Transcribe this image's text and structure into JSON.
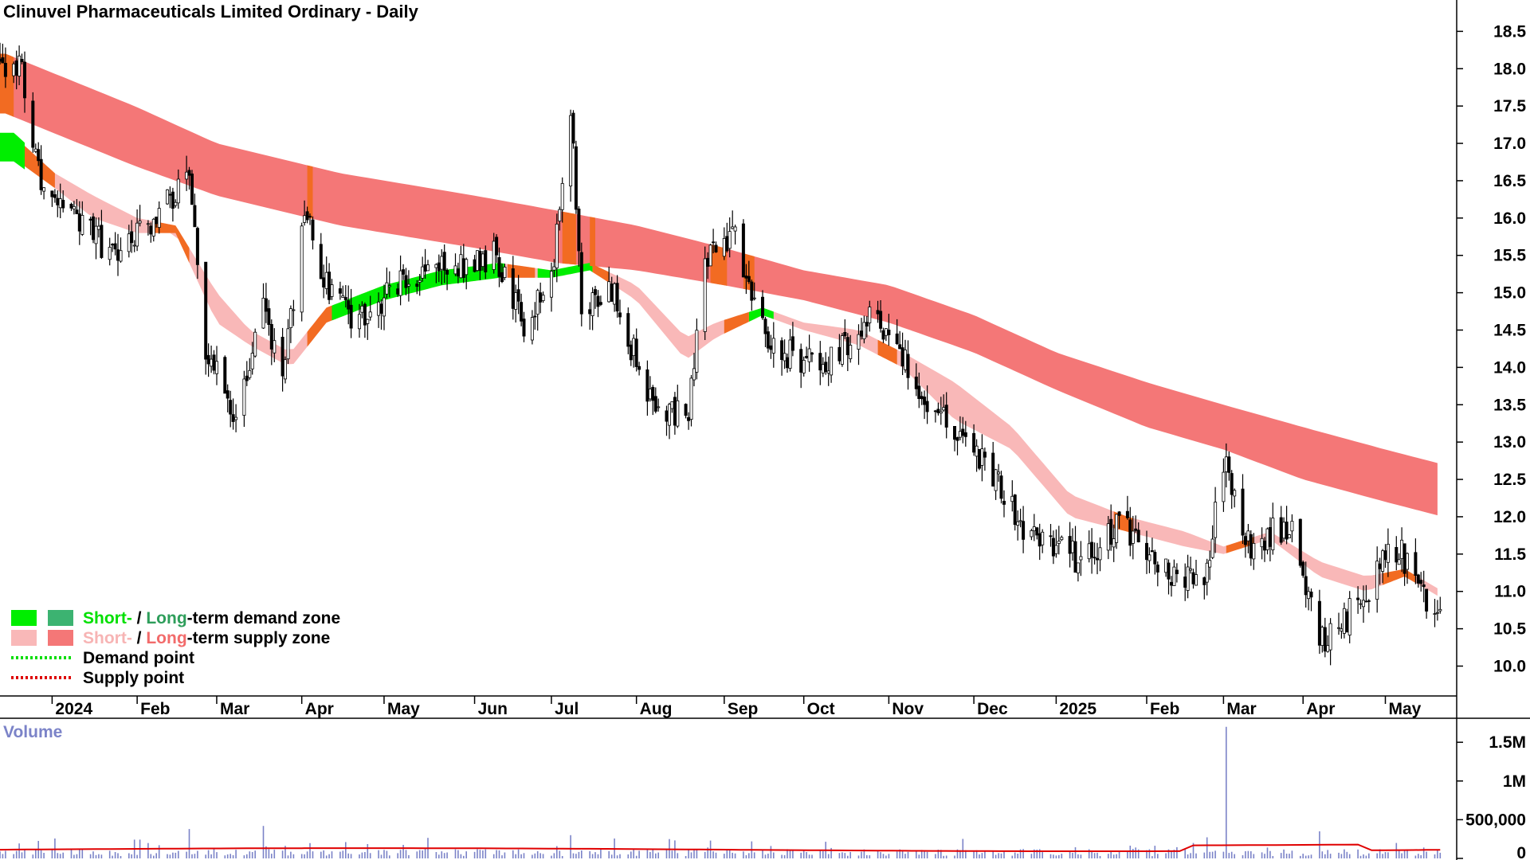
{
  "chart_data": {
    "type": "candlestick",
    "title": "Clinuvel Pharmaceuticals Limited Ordinary - Daily",
    "price_axis": {
      "ticks": [
        "10.0",
        "10.5",
        "11.0",
        "11.5",
        "12.0",
        "12.5",
        "13.0",
        "13.5",
        "14.0",
        "14.5",
        "15.0",
        "15.5",
        "16.0",
        "16.5",
        "17.0",
        "17.5",
        "18.0",
        "18.5"
      ],
      "ylim": [
        9.6,
        18.6
      ]
    },
    "time_axis": {
      "ticks": [
        "2024",
        "Feb",
        "Mar",
        "Apr",
        "May",
        "Jun",
        "Jul",
        "Aug",
        "Sep",
        "Oct",
        "Nov",
        "Dec",
        "2025",
        "Feb",
        "Mar",
        "Apr",
        "May"
      ]
    },
    "close_anchors": {
      "2023-12-20": 18.1,
      "2023-12-27": 16.6,
      "2024-01-10": 16.0,
      "2024-01-24": 15.5,
      "2024-02-05": 15.9,
      "2024-02-20": 16.5,
      "2024-02-26": 14.3,
      "2024-03-08": 13.2,
      "2024-03-18": 15.0,
      "2024-03-25": 13.7,
      "2024-04-02": 16.2,
      "2024-04-08": 15.2,
      "2024-04-22": 14.6,
      "2024-05-06": 15.1,
      "2024-06-10": 15.5,
      "2024-06-21": 14.6,
      "2024-07-01": 15.1,
      "2024-07-08": 17.5,
      "2024-07-12": 14.9,
      "2024-07-24": 15.0,
      "2024-08-05": 13.6,
      "2024-08-20": 13.3,
      "2024-08-26": 15.5,
      "2024-09-06": 15.7,
      "2024-09-20": 14.2,
      "2024-10-08": 14.1,
      "2024-10-28": 14.7,
      "2024-11-12": 13.7,
      "2024-12-02": 12.9,
      "2024-12-20": 11.9,
      "2025-01-10": 11.4,
      "2025-01-24": 11.9,
      "2025-02-11": 11.2,
      "2025-02-25": 11.3,
      "2025-03-04": 12.9,
      "2025-03-10": 11.6,
      "2025-03-28": 11.9,
      "2025-04-07": 10.3,
      "2025-04-18": 10.7,
      "2025-05-05": 11.6,
      "2025-05-20": 10.7
    },
    "long_term_supply_zone": {
      "dates": [
        "2023-12-15",
        "2024-01-31",
        "2024-03-01",
        "2024-04-15",
        "2024-06-03",
        "2024-07-03",
        "2024-08-01",
        "2024-09-02",
        "2024-10-01",
        "2024-11-01",
        "2024-12-02",
        "2025-01-01",
        "2025-02-03",
        "2025-03-03",
        "2025-04-01",
        "2025-05-01",
        "2025-05-22"
      ],
      "upper": [
        18.2,
        17.5,
        17.0,
        16.6,
        16.3,
        16.1,
        15.9,
        15.6,
        15.3,
        15.1,
        14.7,
        14.2,
        13.8,
        13.5,
        13.2,
        12.9,
        12.7
      ],
      "lower": [
        17.4,
        16.7,
        16.3,
        15.9,
        15.6,
        15.4,
        15.3,
        15.1,
        14.9,
        14.6,
        14.2,
        13.7,
        13.2,
        12.9,
        12.5,
        12.2,
        12.0
      ]
    },
    "short_term_zone": {
      "dates": [
        "2023-12-18",
        "2024-01-02",
        "2024-01-16",
        "2024-02-01",
        "2024-02-15",
        "2024-03-01",
        "2024-03-13",
        "2024-03-28",
        "2024-04-10",
        "2024-05-01",
        "2024-05-22",
        "2024-06-12",
        "2024-07-01",
        "2024-07-15",
        "2024-08-01",
        "2024-08-19",
        "2024-08-30",
        "2024-09-16",
        "2024-10-01",
        "2024-10-21",
        "2024-11-06",
        "2024-11-25",
        "2024-12-16",
        "2025-01-06",
        "2025-01-27",
        "2025-02-17",
        "2025-03-03",
        "2025-03-20",
        "2025-04-07",
        "2025-04-24",
        "2025-05-08",
        "2025-05-22"
      ],
      "upper": [
        17.1,
        16.6,
        16.3,
        16.0,
        15.9,
        15.0,
        14.5,
        14.2,
        14.8,
        15.1,
        15.3,
        15.4,
        15.3,
        15.4,
        15.1,
        14.4,
        14.6,
        14.8,
        14.6,
        14.5,
        14.2,
        13.8,
        13.2,
        12.3,
        12.0,
        11.8,
        11.6,
        11.8,
        11.4,
        11.2,
        11.3,
        11.0
      ],
      "lower": [
        16.8,
        16.4,
        16.0,
        15.8,
        15.8,
        14.6,
        14.3,
        14.0,
        14.6,
        14.9,
        15.1,
        15.2,
        15.2,
        15.3,
        14.9,
        14.1,
        14.4,
        14.7,
        14.5,
        14.3,
        14.0,
        13.3,
        12.9,
        12.0,
        11.8,
        11.6,
        11.5,
        11.7,
        11.2,
        11.0,
        11.2,
        10.9
      ]
    },
    "volume_axis": {
      "ticks": [
        "0",
        "500,000",
        "1M",
        "1.5M"
      ]
    },
    "volume_spikes": [
      {
        "date": "2024-02-20",
        "value": 380000
      },
      {
        "date": "2024-03-18",
        "value": 420000
      },
      {
        "date": "2024-07-08",
        "value": 300000
      },
      {
        "date": "2024-08-28",
        "value": 230000
      },
      {
        "date": "2024-09-12",
        "value": 220000
      },
      {
        "date": "2025-02-20",
        "value": 200000
      },
      {
        "date": "2025-03-04",
        "value": 1700000
      },
      {
        "date": "2025-04-07",
        "value": 350000
      },
      {
        "date": "2025-05-05",
        "value": 200000
      }
    ],
    "volume_ma": 150000,
    "volume_label": "Volume",
    "legend": [
      {
        "parts": [
          {
            "text": "Short-",
            "color": "#00e000"
          },
          {
            "text": " / ",
            "color": "#000000"
          },
          {
            "text": "Long",
            "color": "#2e9e5b"
          },
          {
            "text": "-term demand zone",
            "color": "#000000"
          }
        ],
        "swatches": [
          "#00ee00",
          "#3cb371"
        ]
      },
      {
        "parts": [
          {
            "text": "Short-",
            "color": "#f7b4b4"
          },
          {
            "text": " / ",
            "color": "#000000"
          },
          {
            "text": "Long",
            "color": "#f26b6b"
          },
          {
            "text": "-term supply zone",
            "color": "#000000"
          }
        ],
        "swatches": [
          "#f9b8b8",
          "#f47777"
        ]
      },
      {
        "parts": [
          {
            "text": "Demand point",
            "color": "#000000"
          }
        ],
        "dotted": "#00dd00"
      },
      {
        "parts": [
          {
            "text": "Supply point",
            "color": "#000000"
          }
        ],
        "dotted": "#dd0000"
      }
    ],
    "colors": {
      "long_supply": "#f47777",
      "short_supply": "#f9b8b8",
      "short_demand": "#00ee00",
      "long_demand": "#3cb371",
      "transition": "#f26b22",
      "volume_bars": "#7b83c8",
      "volume_ma": "#e00000",
      "candles": "#000000"
    }
  }
}
